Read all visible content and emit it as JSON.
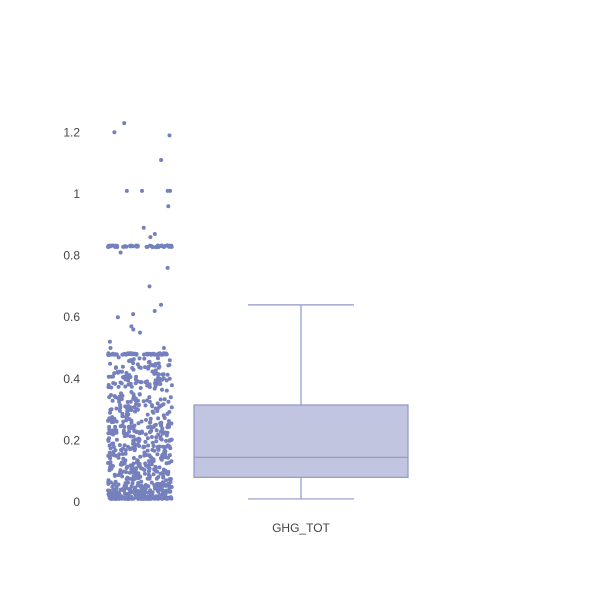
{
  "chart_data": {
    "type": "box",
    "title": "",
    "xlabel": "",
    "ylabel": "",
    "categories": [
      "GHG_TOT"
    ],
    "ylim": [
      0,
      1.24
    ],
    "y_ticks": [
      0,
      0.2,
      0.4,
      0.6,
      0.8,
      1,
      1.2
    ],
    "y_tick_labels": [
      "0",
      "0.2",
      "0.4",
      "0.6",
      "0.8",
      "1",
      "1.2"
    ],
    "grid": false,
    "legend": "none",
    "box": {
      "name": "GHG_TOT",
      "min": 0.01,
      "q1": 0.08,
      "median": 0.145,
      "q3": 0.315,
      "whisker_high": 0.64
    },
    "points": {
      "cluster_values": [
        0.48,
        0.83
      ],
      "cluster_counts": [
        55,
        60
      ],
      "sparse_values": [
        0.5,
        0.5,
        0.52,
        0.55,
        0.56,
        0.57,
        0.6,
        0.61,
        0.62,
        0.64,
        0.7,
        0.76,
        0.81,
        0.86,
        0.87,
        0.89,
        0.96,
        1.01,
        1.01,
        1.01,
        1.01,
        1.11,
        1.19,
        1.2,
        1.23
      ],
      "dense_range": [
        0.01,
        0.47
      ],
      "dense_count": 720,
      "total_count": 860
    },
    "colors": {
      "marker": "#7580bd",
      "box_fill": "#c2c5e0",
      "box_line": "#8f97c9"
    }
  }
}
